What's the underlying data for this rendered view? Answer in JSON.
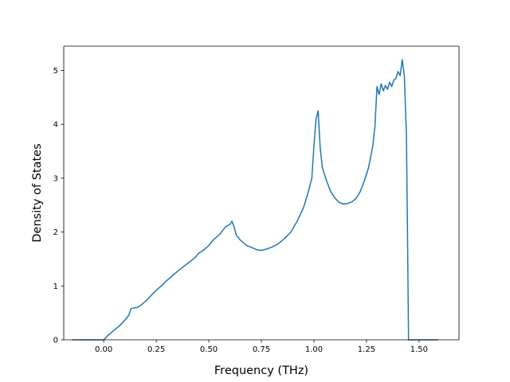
{
  "chart_data": {
    "type": "line",
    "title": "",
    "xlabel": "Frequency (THz)",
    "ylabel": "Density of States",
    "xlim": [
      -0.19,
      1.69
    ],
    "ylim": [
      0,
      5.45
    ],
    "xticks": [
      0.0,
      0.25,
      0.5,
      0.75,
      1.0,
      1.25,
      1.5
    ],
    "xtick_labels": [
      "0.00",
      "0.25",
      "0.50",
      "0.75",
      "1.00",
      "1.25",
      "1.50"
    ],
    "yticks": [
      0,
      1,
      2,
      3,
      4,
      5
    ],
    "ytick_labels": [
      "0",
      "1",
      "2",
      "3",
      "4",
      "5"
    ],
    "grid": false,
    "series": [
      {
        "color": "#1f77b4",
        "x": [
          -0.15,
          -0.1,
          -0.05,
          0.0,
          0.02,
          0.05,
          0.08,
          0.1,
          0.12,
          0.13,
          0.14,
          0.16,
          0.18,
          0.2,
          0.22,
          0.25,
          0.28,
          0.3,
          0.33,
          0.36,
          0.38,
          0.4,
          0.42,
          0.44,
          0.45,
          0.47,
          0.5,
          0.52,
          0.55,
          0.57,
          0.58,
          0.6,
          0.61,
          0.62,
          0.63,
          0.65,
          0.68,
          0.7,
          0.73,
          0.75,
          0.77,
          0.8,
          0.83,
          0.86,
          0.89,
          0.92,
          0.95,
          0.97,
          0.99,
          1.0,
          1.01,
          1.02,
          1.03,
          1.04,
          1.06,
          1.08,
          1.1,
          1.12,
          1.14,
          1.16,
          1.18,
          1.2,
          1.22,
          1.24,
          1.26,
          1.28,
          1.29,
          1.3,
          1.31,
          1.32,
          1.33,
          1.34,
          1.35,
          1.36,
          1.37,
          1.38,
          1.39,
          1.4,
          1.41,
          1.42,
          1.43,
          1.44,
          1.445,
          1.45,
          1.47,
          1.5,
          1.55,
          1.59
        ],
        "y": [
          0,
          0,
          0,
          0,
          0.08,
          0.18,
          0.28,
          0.36,
          0.46,
          0.58,
          0.59,
          0.6,
          0.65,
          0.72,
          0.8,
          0.92,
          1.02,
          1.1,
          1.2,
          1.3,
          1.36,
          1.42,
          1.48,
          1.55,
          1.6,
          1.65,
          1.75,
          1.85,
          1.95,
          2.05,
          2.1,
          2.14,
          2.2,
          2.1,
          1.95,
          1.85,
          1.75,
          1.72,
          1.67,
          1.66,
          1.68,
          1.72,
          1.78,
          1.88,
          2.0,
          2.2,
          2.45,
          2.7,
          3.0,
          3.6,
          4.1,
          4.25,
          3.55,
          3.2,
          2.95,
          2.75,
          2.63,
          2.55,
          2.52,
          2.53,
          2.56,
          2.62,
          2.75,
          2.95,
          3.2,
          3.6,
          3.95,
          4.7,
          4.55,
          4.75,
          4.62,
          4.72,
          4.65,
          4.78,
          4.7,
          4.82,
          4.85,
          4.98,
          4.9,
          5.2,
          4.9,
          3.8,
          2.0,
          0,
          0,
          0,
          0,
          0
        ]
      }
    ]
  }
}
